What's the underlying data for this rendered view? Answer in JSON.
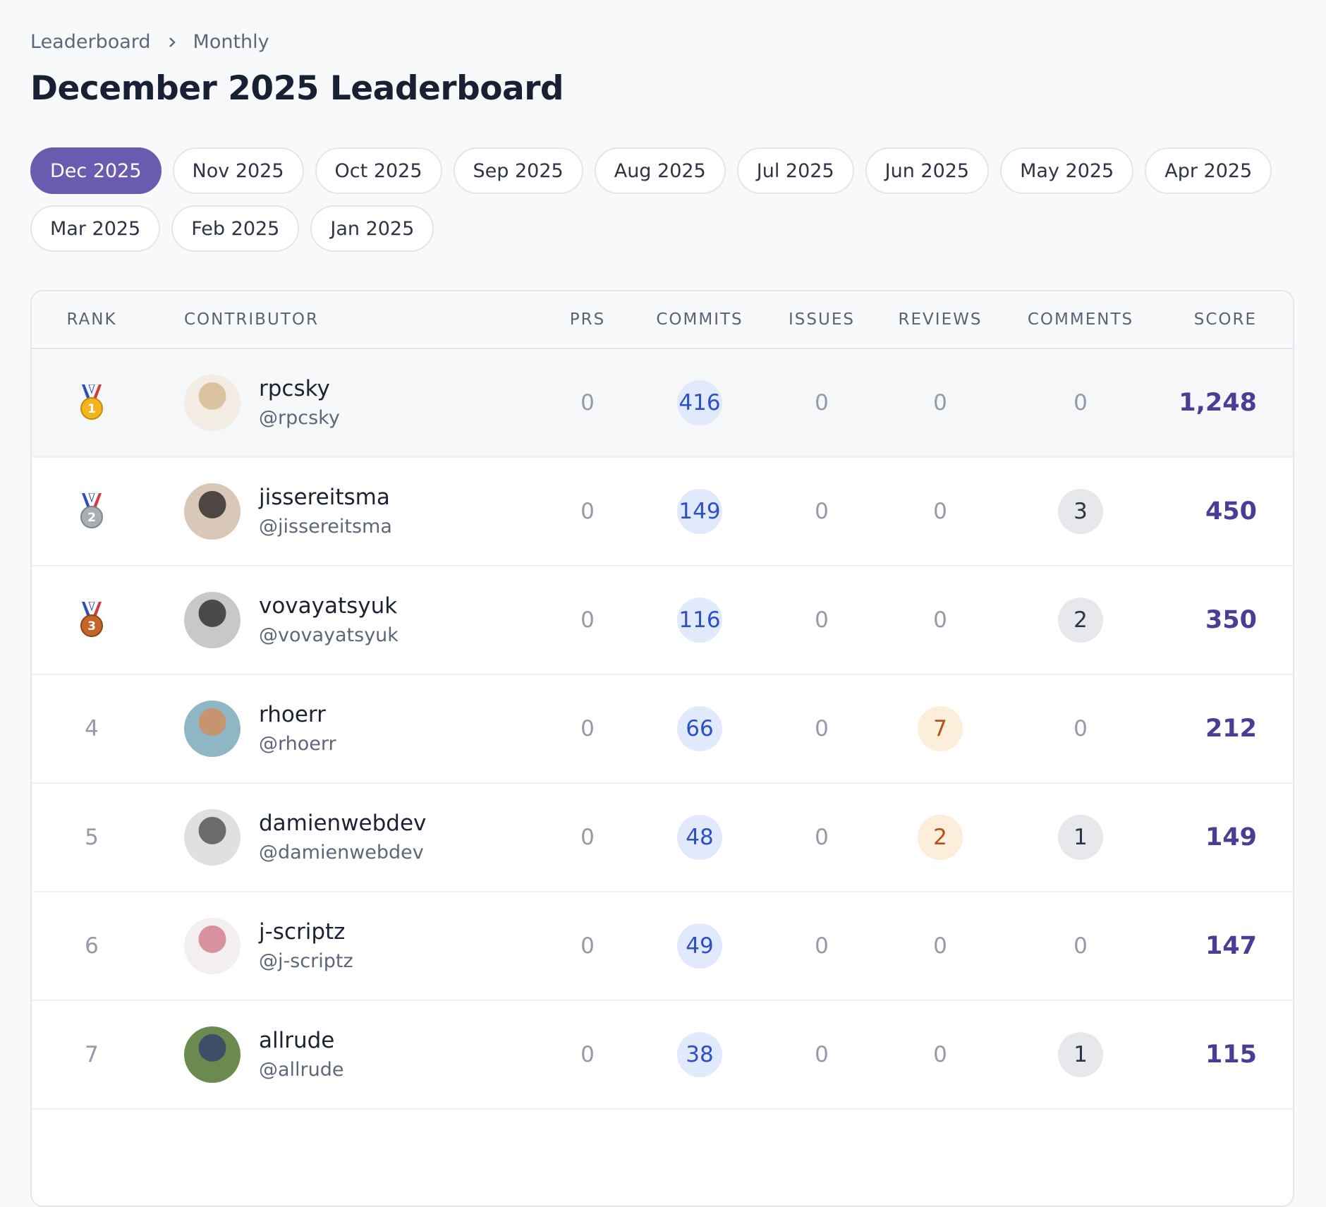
{
  "breadcrumb": [
    "Leaderboard",
    "Monthly"
  ],
  "title": "December 2025 Leaderboard",
  "tabs": [
    "Dec 2025",
    "Nov 2025",
    "Oct 2025",
    "Sep 2025",
    "Aug 2025",
    "Jul 2025",
    "Jun 2025",
    "May 2025",
    "Apr 2025",
    "Mar 2025",
    "Feb 2025",
    "Jan 2025"
  ],
  "active_tab": 0,
  "table": {
    "headers": [
      "RANK",
      "CONTRIBUTOR",
      "PRS",
      "COMMITS",
      "ISSUES",
      "REVIEWS",
      "COMMENTS",
      "SCORE"
    ],
    "rows": [
      [
        "1",
        "rpcsky",
        "@rpcsky",
        "0",
        "416",
        "0",
        "0",
        "0",
        "1,248"
      ],
      [
        "2",
        "jissereitsma",
        "@jissereitsma",
        "0",
        "149",
        "0",
        "0",
        "3",
        "450"
      ],
      [
        "3",
        "vovayatsyuk",
        "@vovayatsyuk",
        "0",
        "116",
        "0",
        "0",
        "2",
        "350"
      ],
      [
        "4",
        "rhoerr",
        "@rhoerr",
        "0",
        "66",
        "0",
        "7",
        "0",
        "212"
      ],
      [
        "5",
        "damienwebdev",
        "@damienwebdev",
        "0",
        "48",
        "0",
        "2",
        "1",
        "149"
      ],
      [
        "6",
        "j-scriptz",
        "@j-scriptz",
        "0",
        "49",
        "0",
        "0",
        "0",
        "147"
      ],
      [
        "7",
        "allrude",
        "@allrude",
        "0",
        "38",
        "0",
        "0",
        "1",
        "115"
      ]
    ]
  }
}
